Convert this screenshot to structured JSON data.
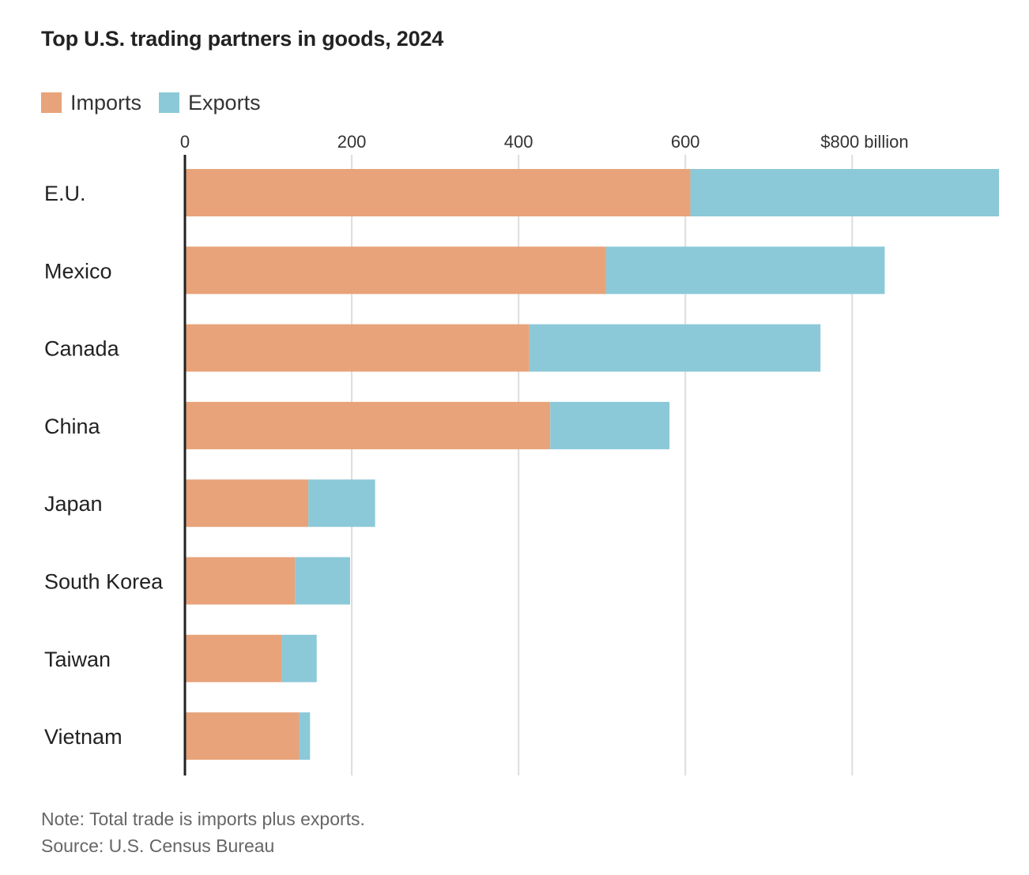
{
  "colors": {
    "imports": "#e8a37a",
    "exports": "#8bc9d8",
    "grid": "#dddddd",
    "axis": "#222222"
  },
  "chart_data": {
    "type": "bar",
    "orientation": "horizontal",
    "stacked": true,
    "title": "Top U.S. trading partners in goods, 2024",
    "categories": [
      "E.U.",
      "Mexico",
      "Canada",
      "China",
      "Japan",
      "South Korea",
      "Taiwan",
      "Vietnam"
    ],
    "series": [
      {
        "name": "Imports",
        "color": "#e8a37a",
        "values": [
          606,
          505,
          413,
          438,
          148,
          132,
          116,
          137
        ]
      },
      {
        "name": "Exports",
        "color": "#8bc9d8",
        "values": [
          370,
          334,
          349,
          143,
          80,
          66,
          42,
          13
        ]
      }
    ],
    "x_ticks": [
      0,
      200,
      400,
      600,
      800
    ],
    "x_tick_labels": [
      "0",
      "200",
      "400",
      "600",
      "$800 billion"
    ],
    "xlim": [
      0,
      976
    ],
    "xlabel": "",
    "ylabel": "",
    "grid": true,
    "legend_position": "top-left"
  },
  "legend": {
    "imports_label": "Imports",
    "exports_label": "Exports"
  },
  "footer": {
    "note": "Note: Total trade is imports plus exports.",
    "source": "Source: U.S. Census Bureau"
  }
}
